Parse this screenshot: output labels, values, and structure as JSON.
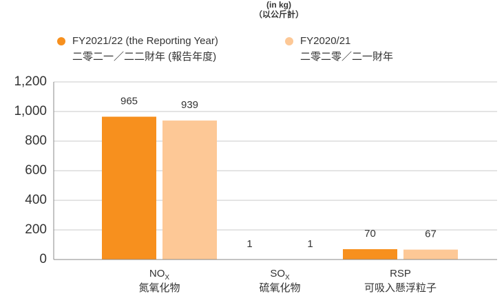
{
  "chart_data": {
    "type": "bar",
    "title": "(in kg)",
    "title_zh": "（以公斤計）",
    "categories": [
      {
        "label": "NO",
        "sub": "X",
        "zh": "氮氧化物"
      },
      {
        "label": "SO",
        "sub": "X",
        "zh": "硫氧化物"
      },
      {
        "label": "RSP",
        "zh": "可吸入懸浮粒子"
      }
    ],
    "series": [
      {
        "name": "FY2021/22 (the Reporting Year)",
        "name_zh": "二零二一／二二財年 (報告年度)",
        "color": "#f7901e",
        "values": [
          965,
          1,
          70
        ]
      },
      {
        "name": "FY2020/21",
        "name_zh": "二零二零／二一財年",
        "color": "#fdc896",
        "values": [
          939,
          1,
          67
        ]
      }
    ],
    "ylim": [
      0,
      1200
    ],
    "yticks": [
      0,
      200,
      400,
      600,
      800,
      {
        "value": 1000,
        "label": "1,000"
      },
      {
        "value": 1200,
        "label": "1,200"
      }
    ],
    "grid": true
  }
}
